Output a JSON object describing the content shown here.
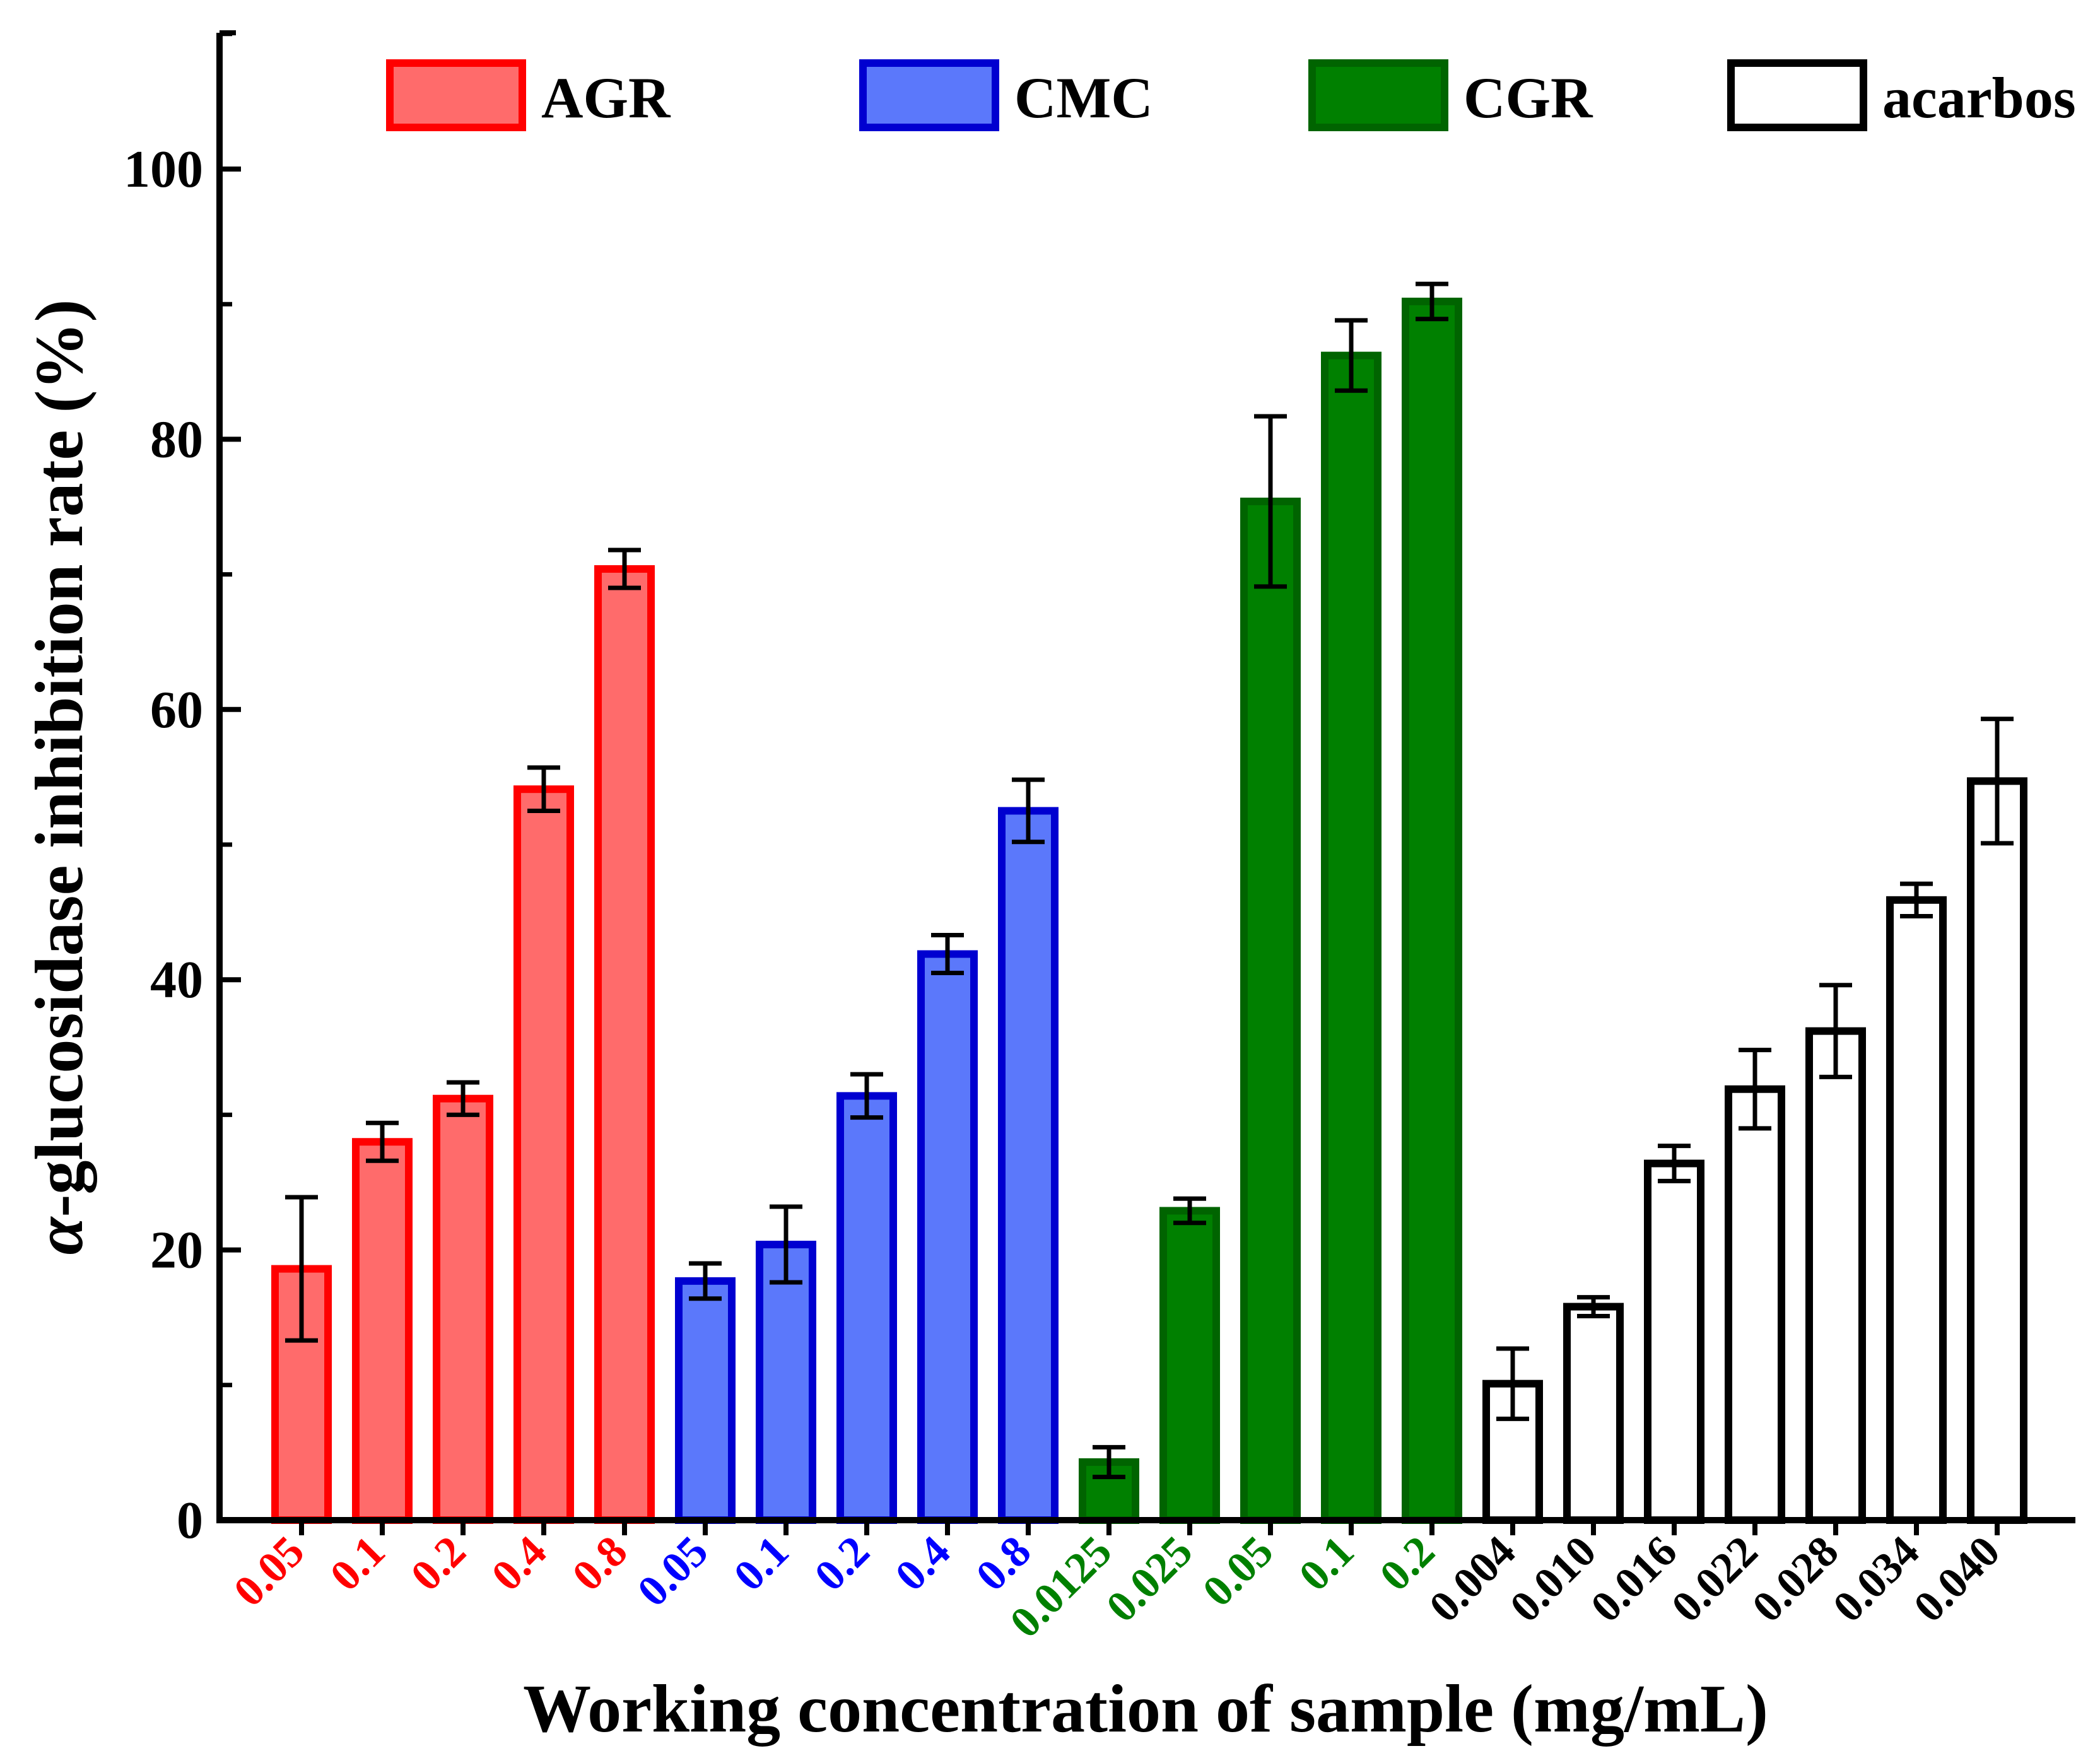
{
  "chart_data": {
    "type": "bar",
    "title": "",
    "xlabel": "Working concentration of sample (mg/mL)",
    "ylabel_prefix": "α",
    "ylabel_rest": "-glucosidase inhibition rate (%)",
    "ylim": [
      0,
      110
    ],
    "yticks": [
      0,
      20,
      40,
      60,
      80,
      100
    ],
    "ytick_labels": [
      "0",
      "20",
      "40",
      "60",
      "80",
      "100"
    ],
    "grid": false,
    "legend_position": "top",
    "groups": [
      {
        "name": "AGR",
        "fill": "#ff6b6b",
        "stroke": "#ff0000",
        "label_color": "#ff0000",
        "categories": [
          "0.05",
          "0.1",
          "0.2",
          "0.4",
          "0.8"
        ],
        "values": [
          18.6,
          28.0,
          31.2,
          54.1,
          70.4
        ],
        "errors": [
          5.3,
          1.4,
          1.2,
          1.6,
          1.4
        ]
      },
      {
        "name": "CMC",
        "fill": "#5b78fb",
        "stroke": "#0000d0",
        "label_color": "#0000ff",
        "categories": [
          "0.05",
          "0.1",
          "0.2",
          "0.4",
          "0.8"
        ],
        "values": [
          17.7,
          20.4,
          31.4,
          41.9,
          52.5
        ],
        "errors": [
          1.3,
          2.8,
          1.6,
          1.4,
          2.3
        ]
      },
      {
        "name": "CGR",
        "fill": "#008000",
        "stroke": "#006400",
        "label_color": "#008000",
        "categories": [
          "0.0125",
          "0.025",
          "0.05",
          "0.1",
          "0.2"
        ],
        "values": [
          4.3,
          22.9,
          75.4,
          86.2,
          90.2
        ],
        "errors": [
          1.1,
          0.9,
          6.3,
          2.6,
          1.3
        ]
      },
      {
        "name": "acarbos",
        "fill": "#ffffff",
        "stroke": "#000000",
        "label_color": "#000000",
        "categories": [
          "0.004",
          "0.010",
          "0.016",
          "0.022",
          "0.028",
          "0.034",
          "0.040"
        ],
        "values": [
          10.1,
          15.8,
          26.4,
          31.9,
          36.2,
          45.9,
          54.7
        ],
        "errors": [
          2.6,
          0.7,
          1.3,
          2.9,
          3.4,
          1.2,
          4.6
        ]
      }
    ]
  }
}
